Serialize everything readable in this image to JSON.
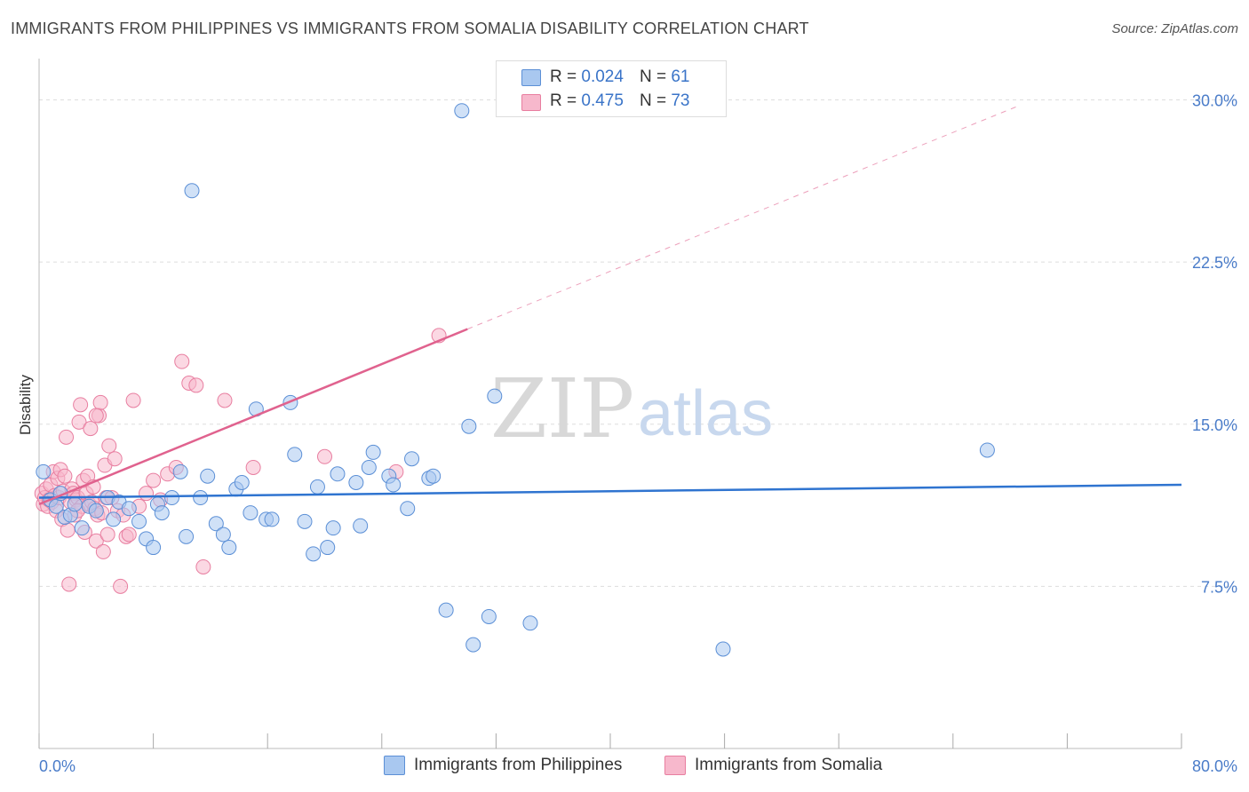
{
  "title": "IMMIGRANTS FROM PHILIPPINES VS IMMIGRANTS FROM SOMALIA DISABILITY CORRELATION CHART",
  "source": "Source: ZipAtlas.com",
  "watermark": {
    "zip": "ZIP",
    "atlas": "atlas"
  },
  "legend": {
    "r_label": "R =",
    "n_label": "N =",
    "rows": [
      {
        "r": "0.024",
        "n": "61"
      },
      {
        "r": "0.475",
        "n": "73"
      }
    ]
  },
  "colors": {
    "philippines_fill": "#a9c8f0",
    "philippines_stroke": "#5b8fd6",
    "philippines_line": "#2f74d0",
    "somalia_fill": "#f7b8cc",
    "somalia_stroke": "#e87ea0",
    "somalia_line": "#e0628e",
    "tick_text": "#4a7cc9",
    "grid": "#dddddd"
  },
  "chart_data": {
    "type": "scatter",
    "title": "IMMIGRANTS FROM PHILIPPINES VS IMMIGRANTS FROM SOMALIA DISABILITY CORRELATION CHART",
    "xlabel": "",
    "ylabel": "Disability",
    "xlim": [
      0,
      80
    ],
    "ylim": [
      0,
      31.5
    ],
    "x_tick_labels": [
      "0.0%",
      "80.0%"
    ],
    "y_ticks": [
      7.5,
      15.0,
      22.5,
      30.0
    ],
    "y_tick_labels": [
      "7.5%",
      "15.0%",
      "22.5%",
      "30.0%"
    ],
    "grid": true,
    "legend_position": "top-center",
    "series": [
      {
        "name": "Immigrants from Philippines",
        "r": 0.024,
        "n": 61,
        "trend": {
          "x0": 0,
          "y0": 11.6,
          "x1": 80,
          "y1": 12.2
        },
        "points": [
          [
            0.3,
            12.8
          ],
          [
            0.8,
            11.5
          ],
          [
            1.2,
            11.2
          ],
          [
            1.5,
            11.8
          ],
          [
            1.8,
            10.7
          ],
          [
            2.2,
            10.8
          ],
          [
            2.5,
            11.3
          ],
          [
            3.0,
            10.2
          ],
          [
            3.5,
            11.2
          ],
          [
            4.0,
            11.0
          ],
          [
            4.8,
            11.6
          ],
          [
            5.2,
            10.6
          ],
          [
            5.6,
            11.4
          ],
          [
            6.3,
            11.1
          ],
          [
            7.0,
            10.5
          ],
          [
            7.5,
            9.7
          ],
          [
            8.0,
            9.3
          ],
          [
            8.3,
            11.3
          ],
          [
            8.6,
            10.9
          ],
          [
            9.3,
            11.6
          ],
          [
            9.9,
            12.8
          ],
          [
            10.3,
            9.8
          ],
          [
            10.7,
            25.8
          ],
          [
            11.3,
            11.6
          ],
          [
            11.8,
            12.6
          ],
          [
            12.4,
            10.4
          ],
          [
            12.9,
            9.9
          ],
          [
            13.3,
            9.3
          ],
          [
            13.8,
            12.0
          ],
          [
            14.2,
            12.3
          ],
          [
            14.8,
            10.9
          ],
          [
            15.2,
            15.7
          ],
          [
            15.9,
            10.6
          ],
          [
            16.3,
            10.6
          ],
          [
            17.6,
            16.0
          ],
          [
            17.9,
            13.6
          ],
          [
            18.6,
            10.5
          ],
          [
            19.2,
            9.0
          ],
          [
            19.5,
            12.1
          ],
          [
            20.2,
            9.3
          ],
          [
            20.6,
            10.2
          ],
          [
            20.9,
            12.7
          ],
          [
            22.2,
            12.3
          ],
          [
            22.5,
            10.3
          ],
          [
            23.1,
            13.0
          ],
          [
            23.4,
            13.7
          ],
          [
            24.5,
            12.6
          ],
          [
            24.8,
            12.2
          ],
          [
            25.8,
            11.1
          ],
          [
            26.1,
            13.4
          ],
          [
            27.3,
            12.5
          ],
          [
            27.6,
            12.6
          ],
          [
            28.5,
            6.4
          ],
          [
            29.6,
            29.5
          ],
          [
            30.1,
            14.9
          ],
          [
            30.4,
            4.8
          ],
          [
            31.5,
            6.1
          ],
          [
            31.9,
            16.3
          ],
          [
            34.4,
            5.8
          ],
          [
            47.9,
            4.6
          ],
          [
            66.4,
            13.8
          ]
        ]
      },
      {
        "name": "Immigrants from Somalia",
        "r": 0.475,
        "n": 73,
        "trend": {
          "x0": 0,
          "y0": 11.3,
          "x1": 30,
          "y1": 19.4
        },
        "trend_extension": {
          "x0": 30,
          "y0": 19.4,
          "x1": 68.5,
          "y1": 29.7
        },
        "points": [
          [
            0.2,
            11.8
          ],
          [
            0.3,
            11.3
          ],
          [
            0.4,
            11.6
          ],
          [
            0.5,
            12.0
          ],
          [
            0.6,
            11.2
          ],
          [
            0.7,
            11.5
          ],
          [
            0.8,
            12.2
          ],
          [
            0.9,
            11.4
          ],
          [
            1.0,
            12.8
          ],
          [
            1.1,
            11.7
          ],
          [
            1.2,
            11.0
          ],
          [
            1.3,
            12.5
          ],
          [
            1.4,
            11.6
          ],
          [
            1.5,
            12.9
          ],
          [
            1.6,
            10.6
          ],
          [
            1.7,
            11.9
          ],
          [
            1.8,
            12.6
          ],
          [
            1.9,
            14.4
          ],
          [
            2.0,
            10.1
          ],
          [
            2.1,
            7.6
          ],
          [
            2.2,
            11.4
          ],
          [
            2.3,
            12.0
          ],
          [
            2.4,
            11.8
          ],
          [
            2.5,
            10.8
          ],
          [
            2.6,
            11.5
          ],
          [
            2.7,
            11.6
          ],
          [
            2.8,
            15.1
          ],
          [
            2.9,
            15.9
          ],
          [
            3.0,
            11.2
          ],
          [
            3.1,
            12.4
          ],
          [
            3.2,
            10.0
          ],
          [
            3.3,
            11.8
          ],
          [
            3.4,
            12.6
          ],
          [
            3.5,
            11.3
          ],
          [
            3.6,
            14.8
          ],
          [
            3.7,
            11.4
          ],
          [
            3.8,
            12.1
          ],
          [
            3.9,
            11.1
          ],
          [
            4.0,
            9.6
          ],
          [
            4.1,
            10.8
          ],
          [
            4.2,
            15.4
          ],
          [
            4.3,
            16.0
          ],
          [
            4.4,
            10.9
          ],
          [
            4.5,
            9.1
          ],
          [
            4.6,
            13.1
          ],
          [
            4.7,
            11.6
          ],
          [
            4.8,
            9.9
          ],
          [
            4.9,
            14.0
          ],
          [
            5.1,
            11.6
          ],
          [
            5.3,
            13.4
          ],
          [
            5.5,
            11.0
          ],
          [
            5.7,
            7.5
          ],
          [
            5.9,
            10.8
          ],
          [
            6.1,
            9.8
          ],
          [
            6.3,
            9.9
          ],
          [
            6.6,
            16.1
          ],
          [
            7.0,
            11.2
          ],
          [
            7.5,
            11.8
          ],
          [
            8.0,
            12.4
          ],
          [
            8.5,
            11.5
          ],
          [
            9.0,
            12.7
          ],
          [
            9.6,
            13.0
          ],
          [
            10.0,
            17.9
          ],
          [
            10.5,
            16.9
          ],
          [
            11.0,
            16.8
          ],
          [
            11.5,
            8.4
          ],
          [
            13.0,
            16.1
          ],
          [
            15.0,
            13.0
          ],
          [
            20.0,
            13.5
          ],
          [
            25.0,
            12.8
          ],
          [
            28.0,
            19.1
          ],
          [
            4.0,
            15.4
          ],
          [
            2.7,
            11.0
          ]
        ]
      }
    ]
  },
  "bottom_legend": [
    {
      "label": "Immigrants from Philippines"
    },
    {
      "label": "Immigrants from Somalia"
    }
  ]
}
